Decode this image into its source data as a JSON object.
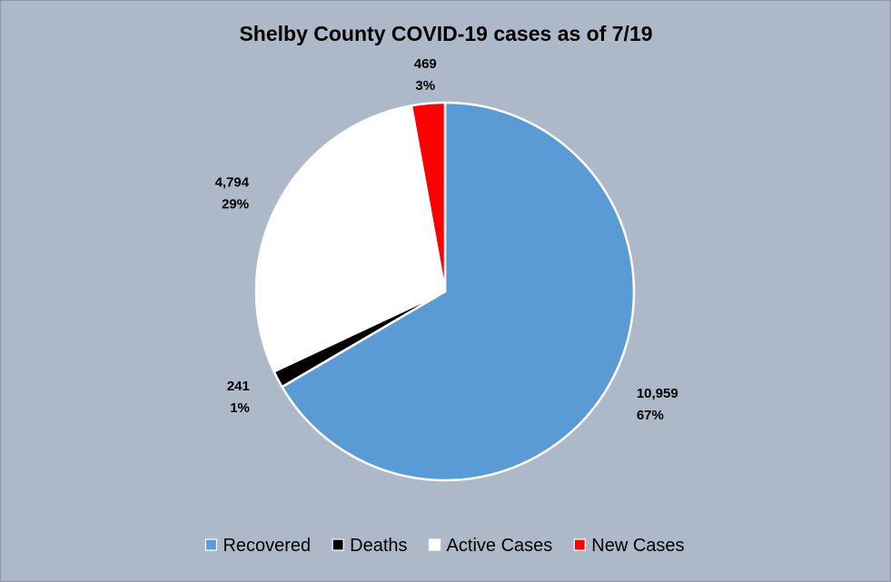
{
  "chart_data": {
    "type": "pie",
    "title": "Shelby County COVID-19 cases as of 7/19",
    "background_color": "#adb8c9",
    "border_color": "#ffffff",
    "start_angle": 0,
    "direction": "clockwise",
    "legend_position": "bottom",
    "slices": [
      {
        "label": "Recovered",
        "value": 10959,
        "value_text": "10,959",
        "percent_text": "67%",
        "color": "#5b9bd5"
      },
      {
        "label": "Deaths",
        "value": 241,
        "value_text": "241",
        "percent_text": "1%",
        "color": "#000000"
      },
      {
        "label": "Active Cases",
        "value": 4794,
        "value_text": "4,794",
        "percent_text": "29%",
        "color": "#ffffff"
      },
      {
        "label": "New Cases",
        "value": 469,
        "value_text": "469",
        "percent_text": "3%",
        "color": "#ff0000"
      }
    ]
  }
}
